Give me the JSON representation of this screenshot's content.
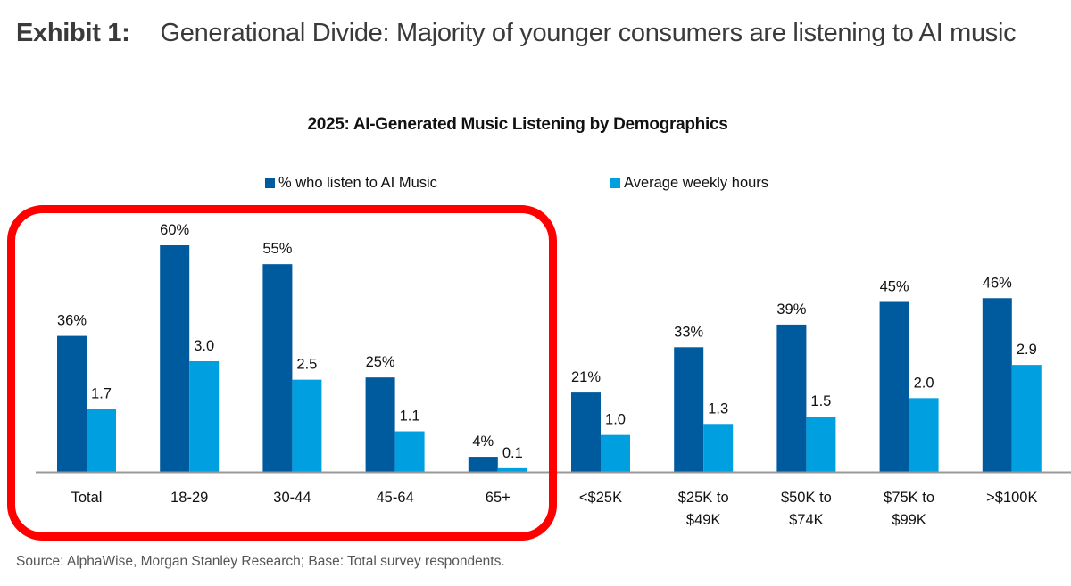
{
  "exhibit": {
    "label": "Exhibit 1:",
    "title": "Generational Divide: Majority of younger consumers are listening to AI music"
  },
  "source": "Source: AlphaWise, Morgan Stanley Research; Base: Total survey respondents.",
  "colors": {
    "series_percent": "#005a9e",
    "series_hours": "#009fdf",
    "highlight": "#ff0000",
    "axis": "#999999"
  },
  "chart_data": {
    "type": "bar",
    "title": "2025: AI-Generated Music Listening by Demographics",
    "xlabel": "",
    "ylabel": "",
    "grid": false,
    "legend_position": "top-center",
    "categories": [
      [
        "Total"
      ],
      [
        "18-29"
      ],
      [
        "30-44"
      ],
      [
        "45-64"
      ],
      [
        "65+"
      ],
      [
        "<$25K"
      ],
      [
        "$25K to",
        "$49K"
      ],
      [
        "$50K to",
        "$74K"
      ],
      [
        "$75K to",
        "$99K"
      ],
      [
        ">$100K"
      ]
    ],
    "series": [
      {
        "name": "% who listen to AI Music",
        "unit": "percent",
        "values": [
          36,
          60,
          55,
          25,
          4,
          21,
          33,
          39,
          45,
          46
        ],
        "labels": [
          "36%",
          "60%",
          "55%",
          "25%",
          "4%",
          "21%",
          "33%",
          "39%",
          "45%",
          "46%"
        ],
        "ylim": [
          0,
          60
        ]
      },
      {
        "name": "Average weekly hours",
        "unit": "hours",
        "values": [
          1.7,
          3.0,
          2.5,
          1.1,
          0.1,
          1.0,
          1.3,
          1.5,
          2.0,
          2.9
        ],
        "labels": [
          "1.7",
          "3.0",
          "2.5",
          "1.1",
          "0.1",
          "1.0",
          "1.3",
          "1.5",
          "2.0",
          "2.9"
        ],
        "ylim": [
          0,
          3.0
        ]
      }
    ],
    "annotation": "Highlighted region: Total and age groups (18-29, 30-44, 45-64, 65+)"
  }
}
